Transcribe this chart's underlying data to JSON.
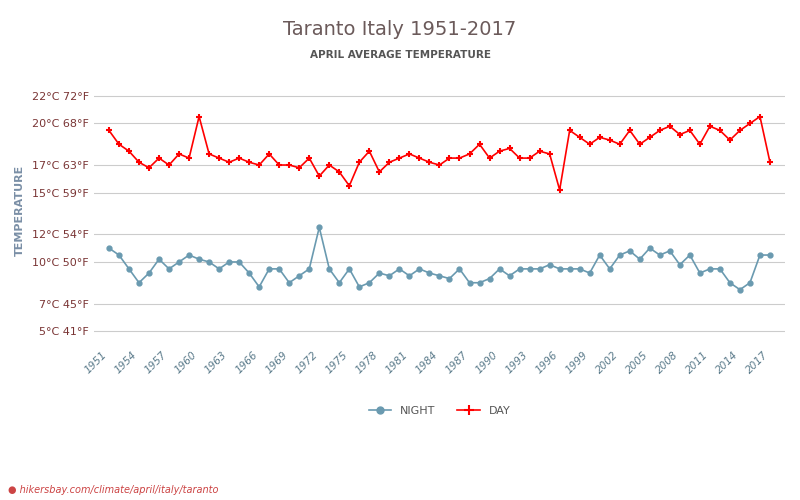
{
  "title": "Taranto Italy 1951-2017",
  "subtitle": "APRIL AVERAGE TEMPERATURE",
  "ylabel": "TEMPERATURE",
  "watermark": "hikersbay.com/climate/april/italy/taranto",
  "title_color": "#6b5a5a",
  "subtitle_color": "#555555",
  "ylabel_color": "#7a8fa6",
  "tick_label_color": "#7a3535",
  "grid_color": "#cccccc",
  "background_color": "#ffffff",
  "years": [
    1951,
    1952,
    1953,
    1954,
    1955,
    1956,
    1957,
    1958,
    1959,
    1960,
    1961,
    1962,
    1963,
    1964,
    1965,
    1966,
    1967,
    1968,
    1969,
    1970,
    1971,
    1972,
    1973,
    1974,
    1975,
    1976,
    1977,
    1978,
    1979,
    1980,
    1981,
    1982,
    1983,
    1984,
    1985,
    1986,
    1987,
    1988,
    1989,
    1990,
    1991,
    1992,
    1993,
    1994,
    1995,
    1996,
    1997,
    1998,
    1999,
    2000,
    2001,
    2002,
    2003,
    2004,
    2005,
    2006,
    2007,
    2008,
    2009,
    2010,
    2011,
    2012,
    2013,
    2014,
    2015,
    2016,
    2017
  ],
  "day_temps": [
    19.5,
    18.5,
    18.0,
    17.2,
    16.8,
    17.5,
    17.0,
    17.8,
    17.5,
    20.5,
    17.8,
    17.5,
    17.2,
    17.5,
    17.2,
    17.0,
    17.8,
    17.0,
    17.0,
    16.8,
    17.5,
    16.2,
    17.0,
    16.5,
    15.5,
    17.2,
    18.0,
    16.5,
    17.2,
    17.5,
    17.8,
    17.5,
    17.2,
    17.0,
    17.5,
    17.5,
    17.8,
    18.5,
    17.5,
    18.0,
    18.2,
    17.5,
    17.5,
    18.0,
    17.8,
    15.2,
    19.5,
    19.0,
    18.5,
    19.0,
    18.8,
    18.5,
    19.5,
    18.5,
    19.0,
    19.5,
    19.8,
    19.2,
    19.5,
    18.5,
    19.8,
    19.5,
    18.8,
    19.5,
    20.0,
    20.5,
    17.2
  ],
  "night_temps": [
    11.0,
    10.5,
    9.5,
    8.5,
    9.2,
    10.2,
    9.5,
    10.0,
    10.5,
    10.2,
    10.0,
    9.5,
    10.0,
    10.0,
    9.2,
    8.2,
    9.5,
    9.5,
    8.5,
    9.0,
    9.5,
    12.5,
    9.5,
    8.5,
    9.5,
    8.2,
    8.5,
    9.2,
    9.0,
    9.5,
    9.0,
    9.5,
    9.2,
    9.0,
    8.8,
    9.5,
    8.5,
    8.5,
    8.8,
    9.5,
    9.0,
    9.5,
    9.5,
    9.5,
    9.8,
    9.5,
    9.5,
    9.5,
    9.2,
    10.5,
    9.5,
    10.5,
    10.8,
    10.2,
    11.0,
    10.5,
    10.8,
    9.8,
    10.5,
    9.2,
    9.5,
    9.5,
    8.5,
    8.0,
    8.5,
    10.5,
    10.5
  ],
  "day_color": "#ff0000",
  "night_color": "#6a9ab0",
  "yticks_c": [
    5,
    7,
    10,
    12,
    15,
    17,
    20,
    22
  ],
  "yticks_f": [
    41,
    45,
    50,
    54,
    59,
    63,
    68,
    72
  ],
  "xtick_years": [
    1951,
    1954,
    1957,
    1960,
    1963,
    1966,
    1969,
    1972,
    1975,
    1978,
    1981,
    1984,
    1987,
    1990,
    1993,
    1996,
    1999,
    2002,
    2005,
    2008,
    2011,
    2014,
    2017
  ]
}
